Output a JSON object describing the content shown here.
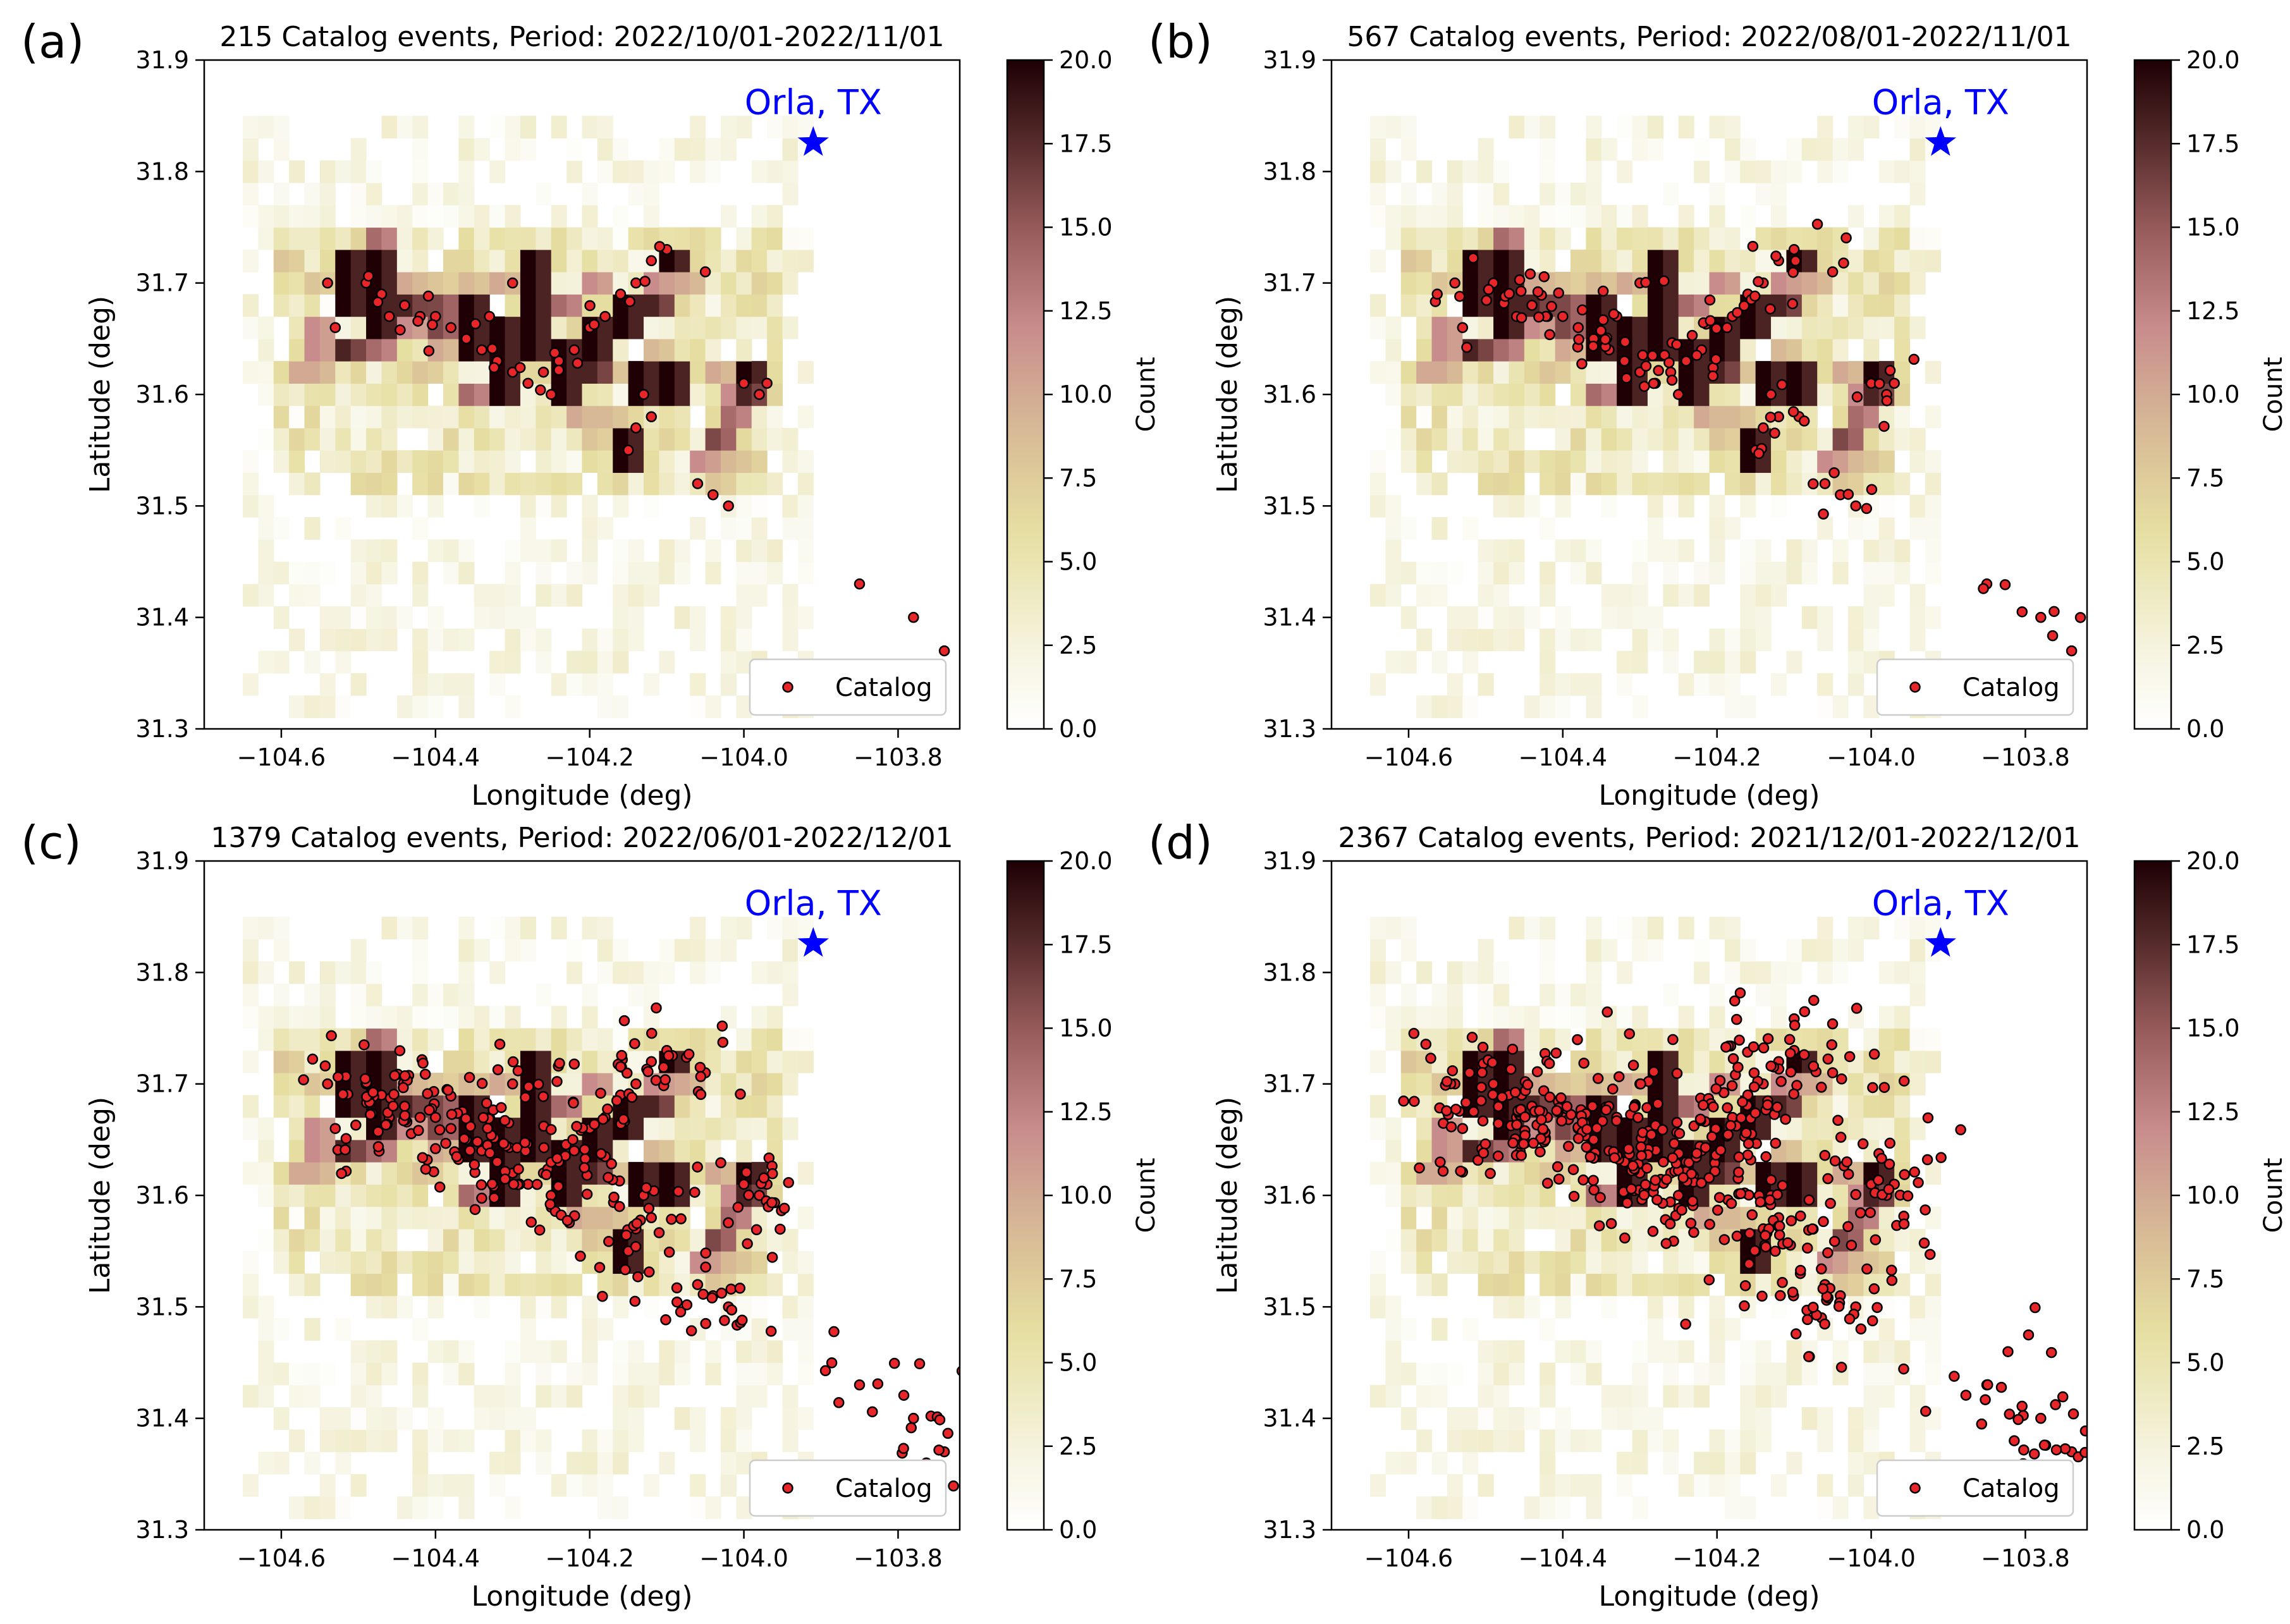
{
  "figure": {
    "panels": [
      {
        "label": "(a)",
        "title": "215 Catalog events, Period: 2022/10/01-2022/11/01"
      },
      {
        "label": "(b)",
        "title": "567 Catalog events, Period: 2022/08/01-2022/11/01"
      },
      {
        "label": "(c)",
        "title": "1379 Catalog events, Period: 2022/06/01-2022/12/01"
      },
      {
        "label": "(d)",
        "title": "2367 Catalog events, Period: 2021/12/01-2022/12/01"
      }
    ],
    "xlabel": "Longitude (deg)",
    "ylabel": "Latitude (deg)",
    "colorbar_label": "Count",
    "legend_label": "Catalog",
    "marker_label": "Orla, TX"
  },
  "chart_data": {
    "type": "heatmap",
    "xlim": [
      -104.7,
      -103.72
    ],
    "ylim": [
      31.3,
      31.9
    ],
    "xticks": [
      -104.6,
      -104.4,
      -104.2,
      -104.0,
      -103.8
    ],
    "xtick_labels": [
      "−104.6",
      "−104.4",
      "−104.2",
      "−104.0",
      "−103.8"
    ],
    "yticks": [
      31.3,
      31.4,
      31.5,
      31.6,
      31.7,
      31.8,
      31.9
    ],
    "ytick_labels": [
      "31.3",
      "31.4",
      "31.5",
      "31.6",
      "31.7",
      "31.8",
      "31.9"
    ],
    "colorbar": {
      "range": [
        0,
        20
      ],
      "ticks": [
        0,
        2.5,
        5,
        7.5,
        10,
        12.5,
        15,
        17.5,
        20
      ],
      "tick_labels": [
        "0.0",
        "2.5",
        "5.0",
        "7.5",
        "10.0",
        "12.5",
        "15.0",
        "17.5",
        "20.0"
      ],
      "colormap": "pink-brown (white to near-black)"
    },
    "star": {
      "name": "Orla, TX",
      "lon": -103.91,
      "lat": 31.826,
      "color": "#0000ff"
    },
    "legend_position": "lower-right",
    "grid": false,
    "heatmap_bin_deg": 0.02,
    "heatmap_dense_cells": [
      [
        -104.52,
        31.72,
        20
      ],
      [
        -104.48,
        31.72,
        20
      ],
      [
        -104.52,
        31.7,
        20
      ],
      [
        -104.48,
        31.7,
        20
      ],
      [
        -104.52,
        31.68,
        20
      ],
      [
        -104.48,
        31.68,
        20
      ],
      [
        -104.44,
        31.68,
        18
      ],
      [
        -104.4,
        31.68,
        16
      ],
      [
        -104.48,
        31.66,
        20
      ],
      [
        -104.52,
        31.64,
        18
      ],
      [
        -104.48,
        31.64,
        14
      ],
      [
        -104.4,
        31.66,
        16
      ],
      [
        -104.36,
        31.68,
        20
      ],
      [
        -104.36,
        31.66,
        20
      ],
      [
        -104.36,
        31.64,
        20
      ],
      [
        -104.32,
        31.66,
        20
      ],
      [
        -104.32,
        31.64,
        20
      ],
      [
        -104.32,
        31.62,
        20
      ],
      [
        -104.32,
        31.6,
        20
      ],
      [
        -104.28,
        31.72,
        20
      ],
      [
        -104.28,
        31.7,
        20
      ],
      [
        -104.28,
        31.68,
        20
      ],
      [
        -104.28,
        31.66,
        20
      ],
      [
        -104.28,
        31.64,
        20
      ],
      [
        -104.24,
        31.64,
        20
      ],
      [
        -104.24,
        31.62,
        20
      ],
      [
        -104.24,
        31.6,
        20
      ],
      [
        -104.2,
        31.66,
        20
      ],
      [
        -104.2,
        31.64,
        20
      ],
      [
        -104.2,
        31.62,
        18
      ],
      [
        -104.16,
        31.68,
        20
      ],
      [
        -104.16,
        31.66,
        20
      ],
      [
        -104.12,
        31.68,
        18
      ],
      [
        -104.14,
        31.62,
        20
      ],
      [
        -104.1,
        31.62,
        20
      ],
      [
        -104.14,
        31.6,
        20
      ],
      [
        -104.1,
        31.6,
        20
      ],
      [
        -104.16,
        31.56,
        20
      ],
      [
        -104.16,
        31.54,
        20
      ],
      [
        -104.1,
        31.72,
        20
      ],
      [
        -104.0,
        31.62,
        20
      ],
      [
        -104.0,
        31.6,
        18
      ],
      [
        -104.02,
        31.58,
        14
      ],
      [
        -104.04,
        31.56,
        16
      ],
      [
        -104.06,
        31.54,
        12
      ],
      [
        -104.56,
        31.66,
        12
      ],
      [
        -104.56,
        31.64,
        12
      ],
      [
        -104.58,
        31.62,
        10
      ],
      [
        -104.56,
        31.62,
        10
      ],
      [
        -104.44,
        31.66,
        12
      ],
      [
        -104.4,
        31.64,
        10
      ],
      [
        -104.42,
        31.62,
        8
      ],
      [
        -104.36,
        31.6,
        14
      ],
      [
        -104.22,
        31.58,
        10
      ],
      [
        -104.2,
        31.56,
        8
      ],
      [
        -104.18,
        31.58,
        9
      ],
      [
        -104.12,
        31.64,
        9
      ],
      [
        -104.04,
        31.62,
        10
      ],
      [
        -104.02,
        31.6,
        12
      ],
      [
        -104.02,
        31.54,
        9
      ],
      [
        -104.04,
        31.52,
        8
      ],
      [
        -104.24,
        31.68,
        14
      ],
      [
        -104.2,
        31.7,
        12
      ],
      [
        -104.12,
        31.7,
        12
      ],
      [
        -104.08,
        31.7,
        10
      ],
      [
        -104.36,
        31.7,
        9
      ],
      [
        -104.32,
        31.7,
        10
      ],
      [
        -104.56,
        31.7,
        8
      ],
      [
        -104.6,
        31.72,
        8
      ],
      [
        -104.6,
        31.7,
        6
      ],
      [
        -104.48,
        31.74,
        14
      ],
      [
        -104.44,
        31.7,
        10
      ],
      [
        -104.4,
        31.7,
        8
      ],
      [
        -104.16,
        31.62,
        8
      ],
      [
        -104.2,
        31.54,
        6
      ]
    ],
    "series": [
      {
        "name": "Catalog",
        "panel_a_points": [
          [
            -104.49,
            31.7
          ],
          [
            -104.47,
            31.69
          ],
          [
            -104.46,
            31.67
          ],
          [
            -104.44,
            31.68
          ],
          [
            -104.42,
            31.67
          ],
          [
            -104.4,
            31.67
          ],
          [
            -104.38,
            31.66
          ],
          [
            -104.36,
            31.65
          ],
          [
            -104.34,
            31.64
          ],
          [
            -104.32,
            31.63
          ],
          [
            -104.3,
            31.62
          ],
          [
            -104.28,
            31.61
          ],
          [
            -104.26,
            31.62
          ],
          [
            -104.24,
            31.63
          ],
          [
            -104.22,
            31.64
          ],
          [
            -104.2,
            31.66
          ],
          [
            -104.18,
            31.67
          ],
          [
            -104.16,
            31.69
          ],
          [
            -104.14,
            31.7
          ],
          [
            -104.12,
            31.72
          ],
          [
            -104.1,
            31.73
          ],
          [
            -104.13,
            31.6
          ],
          [
            -104.14,
            31.57
          ],
          [
            -104.15,
            31.55
          ],
          [
            -104.12,
            31.58
          ],
          [
            -104.0,
            31.61
          ],
          [
            -103.98,
            31.6
          ],
          [
            -103.97,
            31.61
          ],
          [
            -104.06,
            31.52
          ],
          [
            -104.04,
            31.51
          ],
          [
            -104.02,
            31.5
          ],
          [
            -103.85,
            31.43
          ],
          [
            -103.78,
            31.4
          ],
          [
            -103.74,
            31.37
          ],
          [
            -104.53,
            31.66
          ],
          [
            -104.54,
            31.7
          ],
          [
            -104.3,
            31.7
          ],
          [
            -104.33,
            31.67
          ],
          [
            -104.25,
            31.6
          ],
          [
            -104.05,
            31.71
          ]
        ]
      }
    ]
  }
}
